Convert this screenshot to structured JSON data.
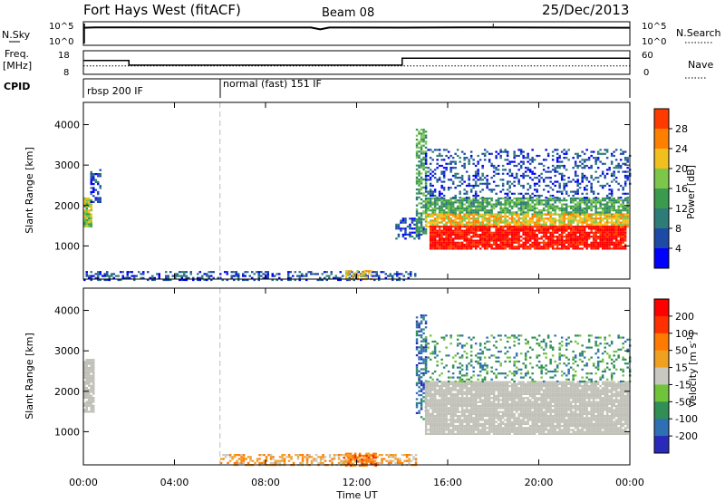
{
  "header": {
    "station": "Fort Hays West (fitACF)",
    "beam": "Beam 08",
    "date": "25/Dec/2013"
  },
  "strips": {
    "nsky_label": "N.Sky",
    "nsearch_label": "N.Search",
    "freq_label_1": "Freq.",
    "freq_label_2": "[MHz]",
    "nave_label": "Nave",
    "cpid_label": "CPID",
    "noise_ticks": [
      "10^5",
      "10^0"
    ],
    "freq_ticks": [
      "18",
      "8"
    ],
    "nave_ticks": [
      "60",
      "0"
    ],
    "cpid_modes": [
      {
        "label": "rbsp 200 IF",
        "start_hour": 0,
        "end_hour": 6
      },
      {
        "label": "normal (fast) 151 IF",
        "start_hour": 6,
        "end_hour": 24
      }
    ]
  },
  "colors": {
    "power_scale": [
      "#0000ff",
      "#1d4aa6",
      "#2e7c78",
      "#3a9a4e",
      "#7cc64a",
      "#f2c01e",
      "#ff8000",
      "#ff3a00",
      "#ff0000"
    ],
    "velocity_scale": [
      "#2a2ab8",
      "#2f6fb3",
      "#2f8f55",
      "#6fc43a",
      "#c8c8c0",
      "#f0a020",
      "#ff7a00",
      "#ff3000",
      "#ff0000"
    ],
    "ground_gray": "#c0c0b8"
  },
  "chart_data": [
    {
      "type": "line",
      "title": "N.Sky / N.Search",
      "x_unit": "hour UT",
      "y_scale": "log",
      "ylim": [
        1,
        100000
      ],
      "series": [
        {
          "name": "N.Sky",
          "x": [
            0,
            0.5,
            2,
            6,
            10,
            10.4,
            10.8,
            14,
            18,
            22,
            24
          ],
          "y": [
            9000,
            11000,
            10500,
            9800,
            10200,
            3500,
            10000,
            9500,
            11000,
            9500,
            9000
          ]
        }
      ]
    },
    {
      "type": "line",
      "title": "Freq. [MHz] / Nave",
      "x_unit": "hour UT",
      "ylim": [
        8,
        18
      ],
      "y2lim": [
        0,
        60
      ],
      "series": [
        {
          "name": "Freq.",
          "x": [
            0,
            2,
            2,
            14,
            14,
            24
          ],
          "y": [
            14,
            14,
            11.7,
            11.7,
            15.2,
            15.2
          ]
        },
        {
          "name": "Nave",
          "x": [
            0,
            24
          ],
          "y": [
            20,
            20
          ]
        }
      ]
    },
    {
      "type": "heatmap",
      "title": "Power [dB]",
      "xlabel": "",
      "ylabel": "Slant Range [km]",
      "x_ticks": [
        "00:00",
        "04:00",
        "08:00",
        "12:00",
        "16:00",
        "20:00",
        "00:00"
      ],
      "xlim": [
        0,
        24
      ],
      "ylim": [
        180,
        4550
      ],
      "y_ticks": [
        1000,
        2000,
        3000,
        4000
      ],
      "colorbar_label": "Power [dB]",
      "colorbar_ticks": [
        "28",
        "24",
        "20",
        "16",
        "12",
        "8",
        "4"
      ],
      "regions": [
        {
          "t0": 0.0,
          "t1": 0.35,
          "r0": 1500,
          "r1": 2200,
          "level": 4,
          "density": 0.95
        },
        {
          "t0": 0.3,
          "t1": 0.7,
          "r0": 2100,
          "r1": 2900,
          "level": 1,
          "density": 0.5
        },
        {
          "t0": 0.0,
          "t1": 14.6,
          "r0": 180,
          "r1": 380,
          "level": 1,
          "density": 0.45
        },
        {
          "t0": 11.5,
          "t1": 12.6,
          "r0": 180,
          "r1": 400,
          "level": 5,
          "density": 0.6
        },
        {
          "t0": 13.7,
          "t1": 14.9,
          "r0": 1200,
          "r1": 1700,
          "level": 1,
          "density": 0.4
        },
        {
          "t0": 14.6,
          "t1": 15.0,
          "r0": 1300,
          "r1": 3900,
          "level": 3,
          "density": 0.6
        },
        {
          "t0": 15.0,
          "t1": 23.9,
          "r0": 1800,
          "r1": 2200,
          "level": 3,
          "density": 0.75
        },
        {
          "t0": 15.0,
          "t1": 23.9,
          "r0": 1500,
          "r1": 1800,
          "level": 5,
          "density": 0.85
        },
        {
          "t0": 15.2,
          "t1": 23.8,
          "r0": 950,
          "r1": 1500,
          "level": 8,
          "density": 0.9
        },
        {
          "t0": 15.0,
          "t1": 24.0,
          "r0": 2200,
          "r1": 3400,
          "level": 1,
          "density": 0.3
        }
      ]
    },
    {
      "type": "heatmap",
      "title": "Velocity [m s^-1]",
      "xlabel": "Time UT",
      "ylabel": "Slant Range [km]",
      "x_ticks": [
        "00:00",
        "04:00",
        "08:00",
        "12:00",
        "16:00",
        "20:00",
        "00:00"
      ],
      "xlim": [
        0,
        24
      ],
      "ylim": [
        180,
        4550
      ],
      "y_ticks": [
        1000,
        2000,
        3000,
        4000
      ],
      "colorbar_label": "Velocity [m s^-1]",
      "colorbar_ticks": [
        "200",
        "100",
        "50",
        "15",
        "-15",
        "-50",
        "-100",
        "-200"
      ],
      "regions": [
        {
          "t0": 0.0,
          "t1": 0.45,
          "r0": 1500,
          "r1": 2800,
          "level": 4,
          "density": 0.9
        },
        {
          "t0": 6.0,
          "t1": 14.6,
          "r0": 180,
          "r1": 450,
          "level": 5,
          "density": 0.5
        },
        {
          "t0": 11.4,
          "t1": 12.8,
          "r0": 180,
          "r1": 480,
          "level": 6,
          "density": 0.7
        },
        {
          "t0": 14.6,
          "t1": 15.0,
          "r0": 1300,
          "r1": 3900,
          "level": 1,
          "density": 0.5
        },
        {
          "t0": 15.0,
          "t1": 23.9,
          "r0": 950,
          "r1": 2250,
          "level": 4,
          "density": 0.92
        },
        {
          "t0": 15.0,
          "t1": 24.0,
          "r0": 2250,
          "r1": 3400,
          "level": 2,
          "density": 0.25
        }
      ]
    }
  ]
}
